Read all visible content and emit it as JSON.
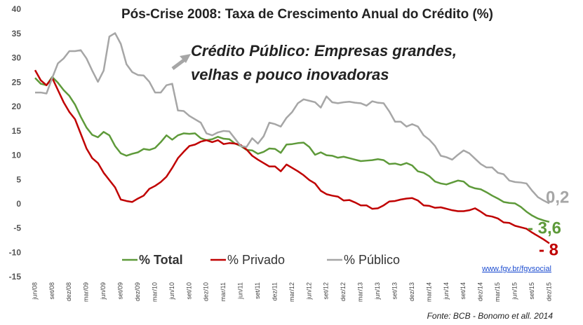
{
  "chart_data": {
    "type": "line",
    "title": "Pós-Crise 2008: Taxa de Crescimento Anual do Crédito (%)",
    "annotation": [
      "Crédito Público: Empresas grandes,",
      "velhas e pouco inovadoras"
    ],
    "link": "www.fgv.br/fgvsocial",
    "source": "Fonte: BCB - Bonomo et all. 2014",
    "categories": [
      "jun/08",
      null,
      null,
      "set/08",
      null,
      null,
      "dez/08",
      null,
      null,
      "mar/09",
      null,
      null,
      "jun/09",
      null,
      null,
      "set/09",
      null,
      null,
      "dez/09",
      null,
      null,
      "mar/10",
      null,
      null,
      "jun/10",
      null,
      null,
      "set/10",
      null,
      null,
      "dez/10",
      null,
      null,
      "mar/11",
      null,
      null,
      "jun/11",
      null,
      null,
      "set/11",
      null,
      null,
      "dez/11",
      null,
      null,
      "mar/12",
      null,
      null,
      "jun/12",
      null,
      null,
      "set/12",
      null,
      null,
      "dez/12",
      null,
      null,
      "mar/13",
      null,
      null,
      "jun/13",
      null,
      null,
      "set/13",
      null,
      null,
      "dez/13",
      null,
      null,
      "mar/14",
      null,
      null,
      "jun/14",
      null,
      null,
      "set/14",
      null,
      null,
      "dez/14",
      null,
      null,
      "mar/15",
      null,
      null,
      "jun/15",
      null,
      null,
      "set/15",
      null,
      null,
      "dez/15"
    ],
    "series": [
      {
        "name": "% Total",
        "color": "#5e9a3a",
        "bold": true,
        "end_label": "- 3,6",
        "values": [
          26,
          24.8,
          24.5,
          26.2,
          25,
          23.5,
          22.3,
          20.5,
          18,
          15.8,
          14.3,
          13.8,
          14.9,
          14.2,
          12,
          10.5,
          10,
          10.4,
          10.7,
          11.4,
          11.2,
          11.6,
          12.8,
          14.2,
          13.3,
          14.2,
          14.6,
          14.5,
          14.6,
          13.6,
          13.2,
          13.4,
          13.9,
          13.5,
          13.4,
          12.5,
          12,
          11.2,
          11.1,
          10.4,
          10.8,
          11.5,
          11.4,
          10.6,
          12.3,
          12.4,
          12.6,
          12.7,
          11.8,
          10.2,
          10.7,
          10.1,
          10,
          9.6,
          9.8,
          9.5,
          9.2,
          8.9,
          9,
          9.1,
          9.3,
          9.1,
          8.3,
          8.4,
          8.1,
          8.5,
          8,
          6.8,
          6.5,
          5.8,
          4.7,
          4.3,
          4.1,
          4.5,
          4.9,
          4.7,
          3.7,
          3.3,
          3.1,
          2.5,
          1.8,
          1.2,
          0.5,
          0.3,
          0.2,
          -0.5,
          -1.5,
          -2.3,
          -2.9,
          -3.3,
          -3.6
        ]
      },
      {
        "name": "% Privado",
        "color": "#c00000",
        "bold": false,
        "end_label": "- 8",
        "values": [
          27.6,
          25.5,
          24.5,
          26,
          23.5,
          21,
          19,
          17.5,
          14.5,
          11.5,
          9.5,
          8.5,
          6.5,
          5,
          3.5,
          1,
          0.7,
          0.5,
          1.2,
          1.8,
          3.2,
          3.8,
          4.6,
          5.7,
          7.5,
          9.5,
          10.8,
          12,
          12.3,
          12.9,
          13.2,
          12.8,
          13.2,
          12.4,
          12.6,
          12.5,
          12.2,
          11.3,
          10,
          9.2,
          8.5,
          7.8,
          7.8,
          6.8,
          8.2,
          7.5,
          6.8,
          6,
          5,
          4.3,
          2.8,
          2.1,
          1.8,
          1.6,
          0.8,
          0.9,
          0.4,
          -0.2,
          -0.2,
          -0.9,
          -0.8,
          -0.2,
          0.6,
          0.7,
          1,
          1.2,
          1.3,
          0.8,
          -0.2,
          -0.3,
          -0.7,
          -0.6,
          -0.9,
          -1.2,
          -1.4,
          -1.4,
          -1.2,
          -0.8,
          -1.5,
          -2.3,
          -2.5,
          -2.9,
          -3.7,
          -3.8,
          -4.4,
          -4.7,
          -5,
          -5.8,
          -6.5,
          -7.2,
          -8
        ]
      },
      {
        "name": "% Público",
        "color": "#a6a6a6",
        "bold": false,
        "end_label": "0,2",
        "values": [
          23,
          23,
          22.8,
          26,
          29,
          30,
          31.5,
          31.5,
          31.7,
          30,
          27.5,
          25.2,
          27.5,
          34.5,
          35.2,
          33,
          28.8,
          27.2,
          26.6,
          26.5,
          25.2,
          23,
          23,
          24.5,
          24.8,
          19.3,
          19.2,
          18.2,
          17.5,
          16.8,
          14.6,
          14.2,
          14.8,
          15.1,
          15,
          13.5,
          12,
          11.8,
          13.6,
          12.5,
          14,
          16.8,
          16.5,
          16,
          17.8,
          19,
          20.8,
          21.6,
          21.3,
          21,
          19.9,
          22.2,
          21,
          20.8,
          21,
          21.1,
          20.9,
          20.8,
          20.3,
          21.2,
          20.9,
          20.8,
          19.1,
          17,
          17,
          16,
          16.5,
          16,
          14.2,
          13.3,
          12,
          10,
          9.7,
          9.2,
          10.2,
          11.1,
          10.5,
          9.4,
          8.3,
          7.6,
          7.6,
          6.5,
          6.2,
          4.9,
          4.6,
          4.5,
          4.3,
          2.8,
          1.5,
          0.8,
          0.2
        ]
      }
    ],
    "ylim": [
      -15,
      40
    ],
    "yticks": [
      -15,
      -10,
      -5,
      0,
      5,
      10,
      15,
      20,
      25,
      30,
      35,
      40
    ],
    "legend": "bottom"
  }
}
